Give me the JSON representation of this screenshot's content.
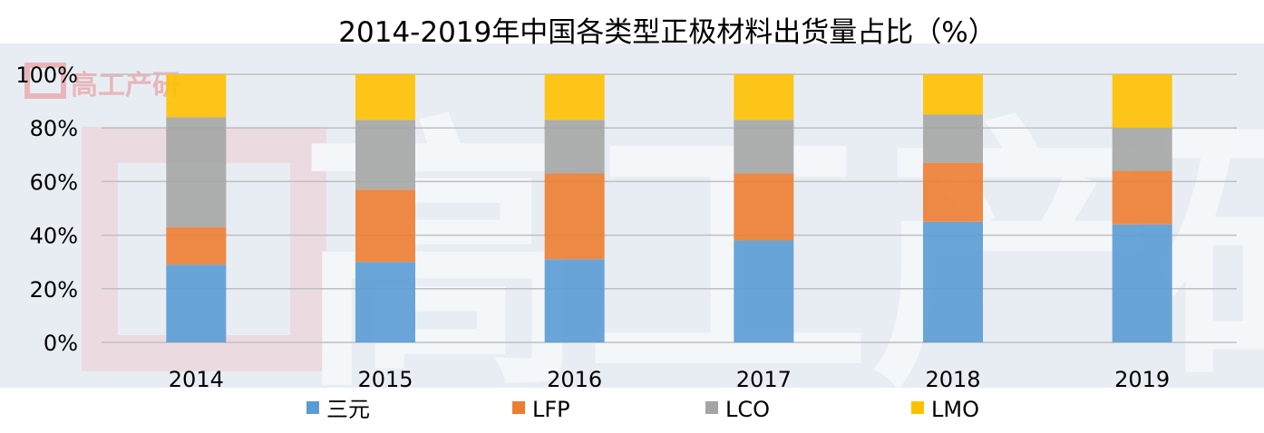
{
  "chart_data": {
    "type": "bar",
    "stacked": true,
    "title": "2014-2019年中国各类型正极材料出货量占比（%）",
    "categories": [
      "2014",
      "2015",
      "2016",
      "2017",
      "2018",
      "2019"
    ],
    "series": [
      {
        "name": "三元",
        "color": "#5B9BD5",
        "values": [
          29,
          30,
          31,
          38,
          45,
          44
        ]
      },
      {
        "name": "LFP",
        "color": "#ED7D31",
        "values": [
          14,
          27,
          32,
          25,
          22,
          20
        ]
      },
      {
        "name": "LCO",
        "color": "#A5A5A5",
        "values": [
          41,
          26,
          20,
          20,
          18,
          16
        ]
      },
      {
        "name": "LMO",
        "color": "#FFC000",
        "values": [
          16,
          17,
          17,
          17,
          15,
          20
        ]
      }
    ],
    "yticks": [
      "0%",
      "20%",
      "40%",
      "60%",
      "80%",
      "100%"
    ],
    "ylim": [
      0,
      100
    ],
    "grid": true,
    "legend_position": "bottom"
  },
  "watermark": {
    "text": "高工产研"
  },
  "colors": {
    "plot_background": "#E8EDF4",
    "gridline": "#BFBFBF",
    "text": "#000000"
  }
}
